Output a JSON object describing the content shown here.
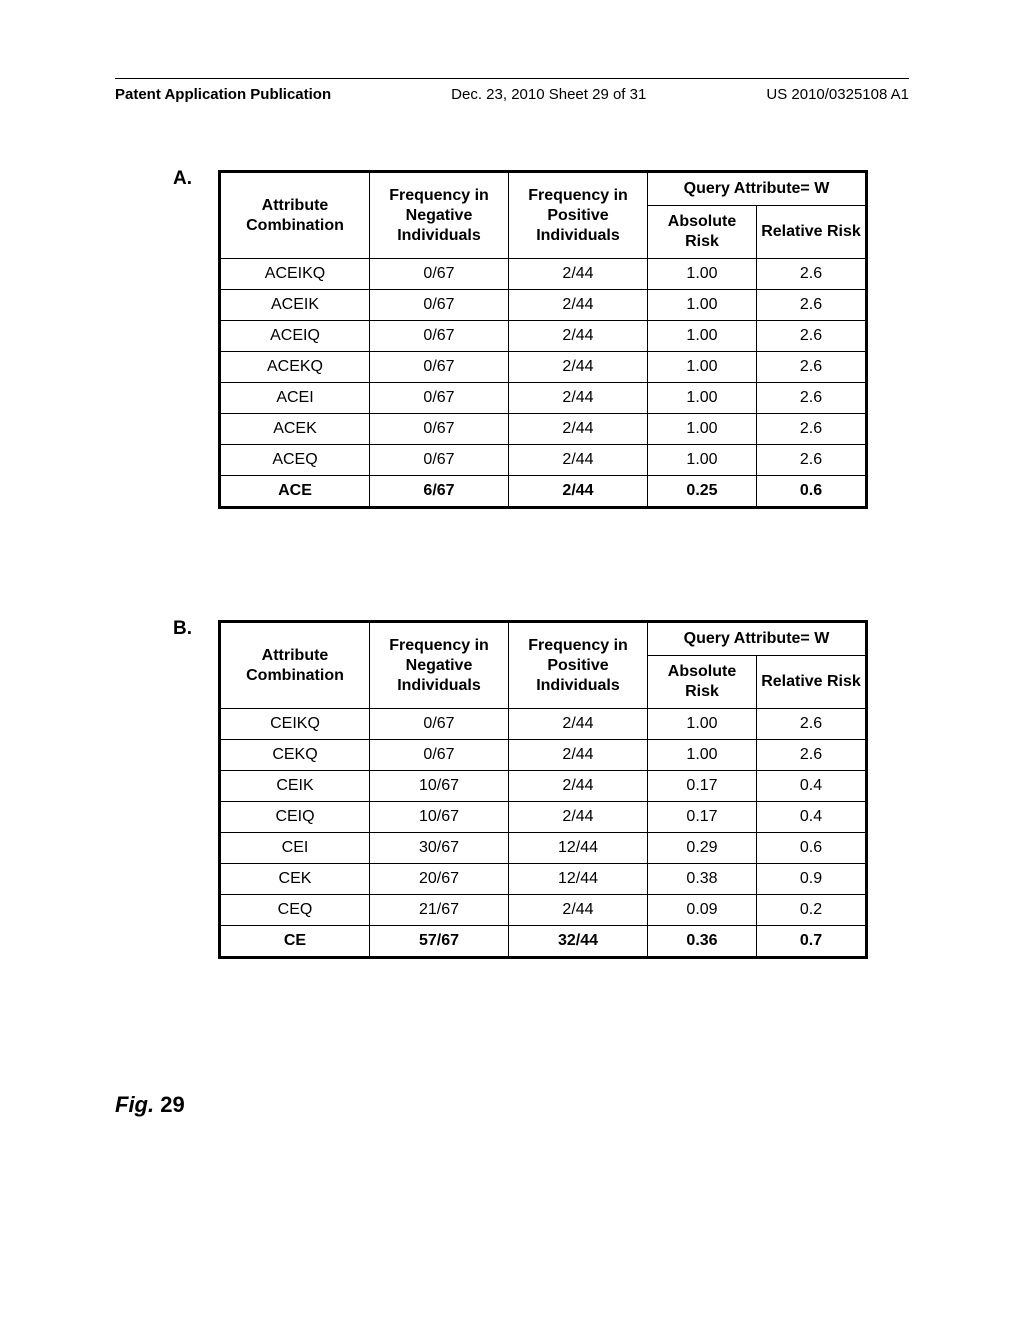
{
  "header": {
    "left": "Patent Application Publication",
    "mid": "Dec. 23, 2010  Sheet 29 of 31",
    "right": "US 2010/0325108 A1"
  },
  "labels": {
    "A": "A.",
    "B": "B.",
    "fig_prefix": "Fig.",
    "fig_num": "29"
  },
  "tableHeaders": {
    "col1": "Attribute Combination",
    "col2": "Frequency in Negative Individuals",
    "col3": "Frequency in Positive Individuals",
    "query_span": "Query Attribute= W",
    "col4": "Absolute Risk",
    "col5": "Relative Risk"
  },
  "tableA": {
    "rows": [
      {
        "c1": "ACEIKQ",
        "c2": "0/67",
        "c3": "2/44",
        "c4": "1.00",
        "c5": "2.6",
        "bold": false
      },
      {
        "c1": "ACEIK",
        "c2": "0/67",
        "c3": "2/44",
        "c4": "1.00",
        "c5": "2.6",
        "bold": false
      },
      {
        "c1": "ACEIQ",
        "c2": "0/67",
        "c3": "2/44",
        "c4": "1.00",
        "c5": "2.6",
        "bold": false
      },
      {
        "c1": "ACEKQ",
        "c2": "0/67",
        "c3": "2/44",
        "c4": "1.00",
        "c5": "2.6",
        "bold": false
      },
      {
        "c1": "ACEI",
        "c2": "0/67",
        "c3": "2/44",
        "c4": "1.00",
        "c5": "2.6",
        "bold": false
      },
      {
        "c1": "ACEK",
        "c2": "0/67",
        "c3": "2/44",
        "c4": "1.00",
        "c5": "2.6",
        "bold": false
      },
      {
        "c1": "ACEQ",
        "c2": "0/67",
        "c3": "2/44",
        "c4": "1.00",
        "c5": "2.6",
        "bold": false
      },
      {
        "c1": "ACE",
        "c2": "6/67",
        "c3": "2/44",
        "c4": "0.25",
        "c5": "0.6",
        "bold": true
      }
    ]
  },
  "tableB": {
    "rows": [
      {
        "c1": "CEIKQ",
        "c2": "0/67",
        "c3": "2/44",
        "c4": "1.00",
        "c5": "2.6",
        "bold": false
      },
      {
        "c1": "CEKQ",
        "c2": "0/67",
        "c3": "2/44",
        "c4": "1.00",
        "c5": "2.6",
        "bold": false
      },
      {
        "c1": "CEIK",
        "c2": "10/67",
        "c3": "2/44",
        "c4": "0.17",
        "c5": "0.4",
        "bold": false
      },
      {
        "c1": "CEIQ",
        "c2": "10/67",
        "c3": "2/44",
        "c4": "0.17",
        "c5": "0.4",
        "bold": false
      },
      {
        "c1": "CEI",
        "c2": "30/67",
        "c3": "12/44",
        "c4": "0.29",
        "c5": "0.6",
        "bold": false
      },
      {
        "c1": "CEK",
        "c2": "20/67",
        "c3": "12/44",
        "c4": "0.38",
        "c5": "0.9",
        "bold": false
      },
      {
        "c1": "CEQ",
        "c2": "21/67",
        "c3": "2/44",
        "c4": "0.09",
        "c5": "0.2",
        "bold": false
      },
      {
        "c1": "CE",
        "c2": "57/67",
        "c3": "32/44",
        "c4": "0.36",
        "c5": "0.7",
        "bold": true
      }
    ]
  }
}
